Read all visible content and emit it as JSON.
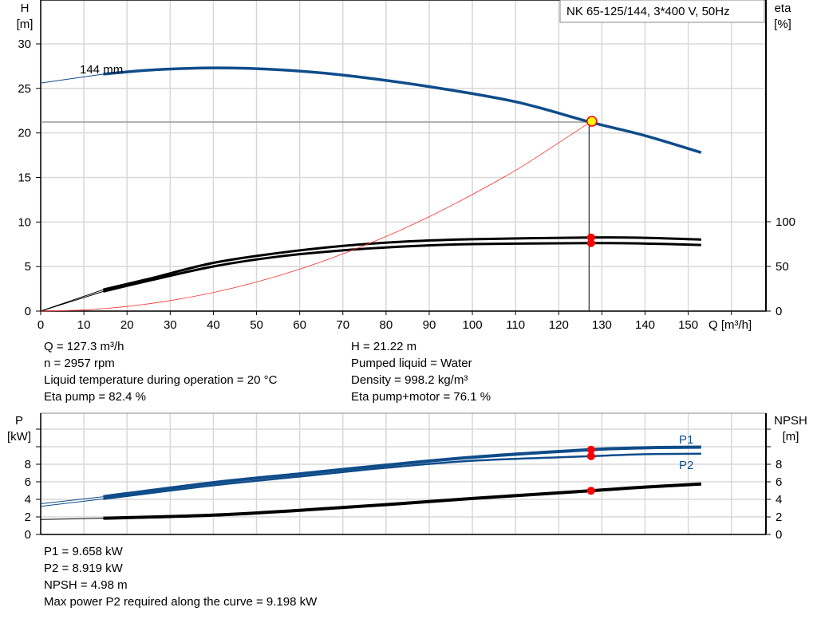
{
  "chart_data": [
    {
      "type": "line",
      "title": "NK 65-125/144, 3*400 V, 50Hz",
      "xlabel": "Q [m³/h]",
      "ylabel": "H\n[m]",
      "ylabel_lines": [
        "H",
        "[m]"
      ],
      "y2label_lines": [
        "eta",
        "[%]"
      ],
      "xlim": [
        0,
        168
      ],
      "ylim": [
        0,
        30
      ],
      "y2lim": [
        0,
        100
      ],
      "xticks": [
        0,
        10,
        20,
        30,
        40,
        50,
        60,
        70,
        80,
        90,
        100,
        110,
        120,
        130,
        140,
        150
      ],
      "yticks": [
        0,
        5,
        10,
        15,
        20,
        25,
        30
      ],
      "y2ticks": [
        0,
        50,
        100
      ],
      "grid": true,
      "curve_label": "144 mm",
      "series": [
        {
          "key": "H",
          "axis": "left",
          "color": "#0f4c8a",
          "thin": [
            [
              0,
              25.6
            ],
            [
              14.5,
              26.6
            ]
          ],
          "thick": [
            [
              14.5,
              26.6
            ],
            [
              25,
              27.05
            ],
            [
              40,
              27.3
            ],
            [
              55,
              27.1
            ],
            [
              70,
              26.5
            ],
            [
              90,
              25.2
            ],
            [
              110,
              23.5
            ],
            [
              127.3,
              21.22
            ],
            [
              140,
              19.7
            ],
            [
              153,
              17.8
            ]
          ]
        },
        {
          "key": "eta_pump",
          "axis": "right",
          "color": "#000000",
          "thin": [
            [
              0,
              0
            ],
            [
              14.5,
              24
            ]
          ],
          "thick": [
            [
              14.5,
              24
            ],
            [
              25,
              36
            ],
            [
              40,
              54
            ],
            [
              55,
              65
            ],
            [
              70,
              73
            ],
            [
              85,
              78
            ],
            [
              100,
              80.5
            ],
            [
              127.3,
              82.4
            ],
            [
              140,
              82
            ],
            [
              153,
              80
            ]
          ]
        },
        {
          "key": "eta_pump_motor",
          "axis": "right",
          "color": "#000000",
          "thin": [
            [
              0,
              0
            ],
            [
              14.5,
              22
            ]
          ],
          "thick": [
            [
              14.5,
              22
            ],
            [
              25,
              34
            ],
            [
              40,
              50
            ],
            [
              55,
              61
            ],
            [
              70,
              68
            ],
            [
              85,
              72.5
            ],
            [
              100,
              75
            ],
            [
              127.3,
              76.1
            ],
            [
              140,
              75.6
            ],
            [
              153,
              74
            ]
          ]
        },
        {
          "key": "system",
          "axis": "left",
          "color": "#ff3030",
          "thin": [
            [
              0,
              0
            ],
            [
              10,
              0.13
            ],
            [
              20,
              0.52
            ],
            [
              30,
              1.18
            ],
            [
              40,
              2.09
            ],
            [
              50,
              3.27
            ],
            [
              60,
              4.71
            ],
            [
              70,
              6.42
            ],
            [
              80,
              8.38
            ],
            [
              90,
              10.6
            ],
            [
              100,
              13.1
            ],
            [
              110,
              15.8
            ],
            [
              120,
              18.9
            ],
            [
              127.3,
              21.22
            ]
          ]
        }
      ],
      "operating_point": {
        "Q": 127.3,
        "H": 21.22,
        "eta_pump": 82.4,
        "eta_pump_motor": 76.1
      }
    },
    {
      "type": "line",
      "ylabel_lines": [
        "P",
        "[kW]"
      ],
      "y2label_lines": [
        "NPSH",
        "[m]"
      ],
      "xlim": [
        0,
        168
      ],
      "ylim": [
        0,
        13.8
      ],
      "yticks": [
        0,
        2,
        4,
        6,
        8
      ],
      "ygrid": [
        0,
        2,
        4,
        6,
        8,
        10,
        12
      ],
      "grid": true,
      "series": [
        {
          "name": "P1",
          "color": "#0f4c8a",
          "thin": [
            [
              0,
              3.5
            ],
            [
              14.5,
              4.3
            ]
          ],
          "thick": [
            [
              14.5,
              4.3
            ],
            [
              40,
              5.9
            ],
            [
              60,
              6.9
            ],
            [
              80,
              7.9
            ],
            [
              100,
              8.8
            ],
            [
              127.3,
              9.658
            ],
            [
              140,
              9.88
            ],
            [
              153,
              9.95
            ]
          ],
          "w": 4
        },
        {
          "name": "P2",
          "color": "#0f4c8a",
          "thin": [
            [
              0,
              3.2
            ],
            [
              14.5,
              4.05
            ]
          ],
          "thick": [
            [
              14.5,
              4.05
            ],
            [
              40,
              5.6
            ],
            [
              60,
              6.6
            ],
            [
              80,
              7.6
            ],
            [
              100,
              8.4
            ],
            [
              127.3,
              8.919
            ],
            [
              140,
              9.15
            ],
            [
              153,
              9.2
            ]
          ],
          "w": 2.5
        },
        {
          "key": "NPSH",
          "color": "#000000",
          "thin": [
            [
              0,
              1.7
            ],
            [
              14.5,
              1.85
            ]
          ],
          "thick": [
            [
              14.5,
              1.85
            ],
            [
              40,
              2.2
            ],
            [
              60,
              2.75
            ],
            [
              80,
              3.4
            ],
            [
              100,
              4.1
            ],
            [
              127.3,
              4.98
            ],
            [
              140,
              5.4
            ],
            [
              153,
              5.75
            ]
          ],
          "w": 4
        }
      ],
      "operating_point": {
        "Q": 127.3,
        "P1": 9.658,
        "P2": 8.919,
        "NPSH": 4.98
      }
    }
  ],
  "info_top": {
    "left": [
      "Q = 127.3 m³/h",
      "n = 2957 rpm",
      "Liquid temperature during operation = 20 °C",
      "Eta pump = 82.4 %"
    ],
    "right": [
      "H = 21.22 m",
      "Pumped liquid = Water",
      "Density = 998.2 kg/m³",
      "Eta pump+motor = 76.1 %"
    ]
  },
  "info_bottom": [
    "P1 = 9.658 kW",
    "P2 = 8.919 kW",
    "NPSH = 4.98 m",
    "Max power P2 required along the curve = 9.198 kW"
  ],
  "colors": {
    "curve_blue": "#0f4c8a",
    "system": "#ff3030",
    "op_point_fill": "#ffff00",
    "op_marker": "#ff0000",
    "grid": "#d8d8d8"
  }
}
